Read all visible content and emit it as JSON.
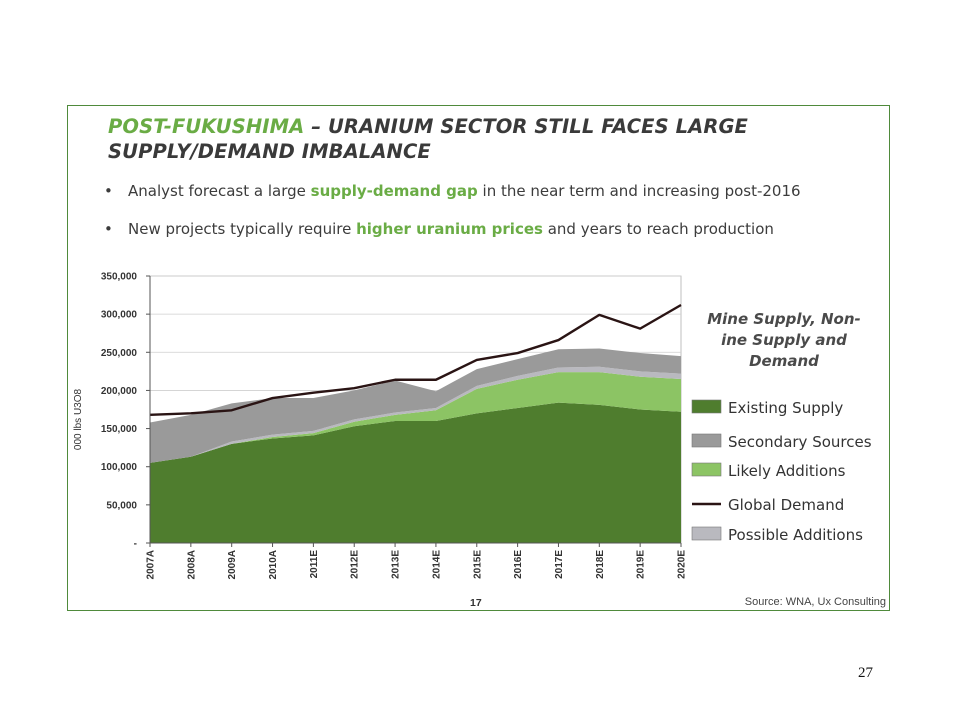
{
  "slide": {
    "title_parts": [
      "POST-FUKUSHIMA",
      " – URANIUM SECTOR STILL FACES LARGE SUPPLY/DEMAND IMBALANCE"
    ],
    "bullets": [
      {
        "pre": "Analyst forecast a large ",
        "hl": "supply-demand gap",
        "post": " in the near term and increasing post-2016"
      },
      {
        "pre": "New projects typically require ",
        "hl": "higher uranium prices",
        "post": " and years to reach production"
      }
    ],
    "footer_page": "17",
    "source": "Source: WNA, Ux Consulting",
    "slide_number": "27"
  },
  "colors": {
    "existing": "#4f7d2e",
    "secondary": "#9a9a9a",
    "likely": "#8cc464",
    "possible": "#b9b9bf",
    "demand": "#2a1414",
    "accent": "#6aac45"
  },
  "chart_data": {
    "type": "area",
    "title": "Mine Supply, Non-Mine Supply and Demand",
    "ylabel": "000 lbs U3O8",
    "ylim": [
      0,
      350000
    ],
    "yticks": [
      0,
      50000,
      100000,
      150000,
      200000,
      250000,
      300000,
      350000
    ],
    "ytick_labels": [
      "-",
      "50,000",
      "100,000",
      "150,000",
      "200,000",
      "250,000",
      "300,000",
      "350,000"
    ],
    "categories": [
      "2007A",
      "2008A",
      "2009A",
      "2010A",
      "2011E",
      "2012E",
      "2013E",
      "2014E",
      "2015E",
      "2016E",
      "2017E",
      "2018E",
      "2019E",
      "2020E"
    ],
    "stacked_series": [
      {
        "name": "Existing Supply",
        "color_key": "existing",
        "values": [
          105000,
          113000,
          130000,
          137000,
          141000,
          153000,
          160000,
          160000,
          170000,
          177000,
          184000,
          181000,
          175000,
          172000
        ]
      },
      {
        "name": "Likely Additions",
        "color_key": "likely",
        "values": [
          0,
          0,
          0,
          2000,
          3000,
          6000,
          8000,
          14000,
          32000,
          37000,
          40000,
          43000,
          43000,
          43000
        ]
      },
      {
        "name": "Possible Additions",
        "color_key": "possible",
        "values": [
          0,
          0,
          3000,
          3000,
          3000,
          3000,
          3000,
          3000,
          4000,
          5000,
          6000,
          7000,
          7000,
          7000
        ]
      },
      {
        "name": "Secondary Sources",
        "color_key": "secondary",
        "values": [
          53000,
          55000,
          50000,
          48000,
          43000,
          38000,
          42000,
          22000,
          22000,
          22000,
          24000,
          24000,
          24000,
          23000
        ]
      }
    ],
    "line_series": {
      "name": "Global Demand",
      "color_key": "demand",
      "values": [
        168000,
        170000,
        174000,
        190000,
        197000,
        203000,
        214000,
        214000,
        240000,
        249000,
        266000,
        299000,
        281000,
        312000
      ]
    },
    "legend": [
      "Existing Supply",
      "Secondary Sources",
      "Likely Additions",
      "Global Demand",
      "Possible Additions"
    ],
    "legend_placement": "right",
    "grid": true
  }
}
